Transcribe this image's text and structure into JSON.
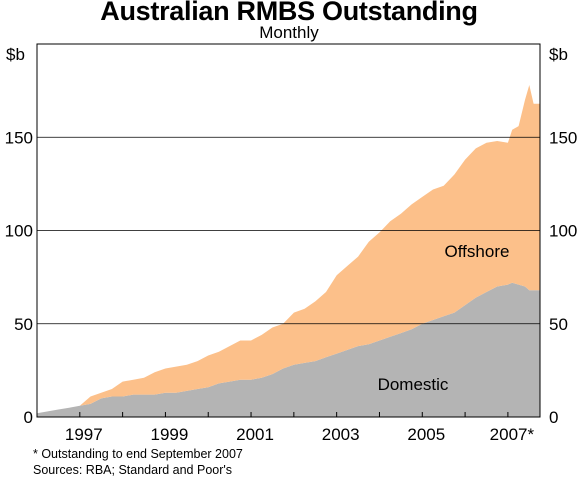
{
  "chart_data": {
    "type": "area",
    "stacked": true,
    "title": "Australian RMBS Outstanding",
    "subtitle": "Monthly",
    "ylabel_left": "$b",
    "ylabel_right": "$b",
    "ylim": [
      0,
      200
    ],
    "yticks": [
      0,
      50,
      100,
      150
    ],
    "xlim": [
      1996.0,
      2007.75
    ],
    "xticks": [
      {
        "value": 1997,
        "label": "1997"
      },
      {
        "value": 1999,
        "label": "1999"
      },
      {
        "value": 2001,
        "label": "2001"
      },
      {
        "value": 2003,
        "label": "2003"
      },
      {
        "value": 2005,
        "label": "2005"
      },
      {
        "value": 2007,
        "label": "2007*"
      }
    ],
    "grid": true,
    "x": [
      1996.0,
      1996.25,
      1996.5,
      1996.75,
      1997.0,
      1997.25,
      1997.5,
      1997.75,
      1998.0,
      1998.25,
      1998.5,
      1998.75,
      1999.0,
      1999.25,
      1999.5,
      1999.75,
      2000.0,
      2000.25,
      2000.5,
      2000.75,
      2001.0,
      2001.25,
      2001.5,
      2001.75,
      2002.0,
      2002.25,
      2002.5,
      2002.75,
      2003.0,
      2003.25,
      2003.5,
      2003.75,
      2004.0,
      2004.25,
      2004.5,
      2004.75,
      2005.0,
      2005.25,
      2005.5,
      2005.75,
      2006.0,
      2006.25,
      2006.5,
      2006.75,
      2007.0,
      2007.1,
      2007.25,
      2007.4,
      2007.5,
      2007.6,
      2007.75
    ],
    "series": [
      {
        "name": "Domestic",
        "color": "#b4b4b4",
        "values": [
          2,
          3,
          4,
          5,
          6,
          7,
          10,
          11,
          11,
          12,
          12,
          12,
          13,
          13,
          14,
          15,
          16,
          18,
          19,
          20,
          20,
          21,
          23,
          26,
          28,
          29,
          30,
          32,
          34,
          36,
          38,
          39,
          41,
          43,
          45,
          47,
          50,
          52,
          54,
          56,
          60,
          64,
          67,
          70,
          71,
          72,
          71,
          70,
          68,
          68,
          68
        ]
      },
      {
        "name": "Offshore",
        "color": "#fcc08a",
        "values": [
          0,
          0,
          0,
          0,
          0,
          4,
          3,
          4,
          8,
          8,
          9,
          12,
          13,
          14,
          14,
          15,
          17,
          17,
          19,
          21,
          21,
          23,
          25,
          24,
          28,
          29,
          32,
          35,
          42,
          45,
          48,
          55,
          58,
          62,
          64,
          67,
          68,
          70,
          70,
          74,
          78,
          80,
          80,
          78,
          76,
          82,
          85,
          100,
          110,
          100,
          100
        ]
      }
    ]
  },
  "labels": {
    "offshore": "Offshore",
    "domestic": "Domestic"
  },
  "footnotes": {
    "note": "*   Outstanding to end September 2007",
    "sources": "Sources: RBA; Standard and Poor's"
  }
}
